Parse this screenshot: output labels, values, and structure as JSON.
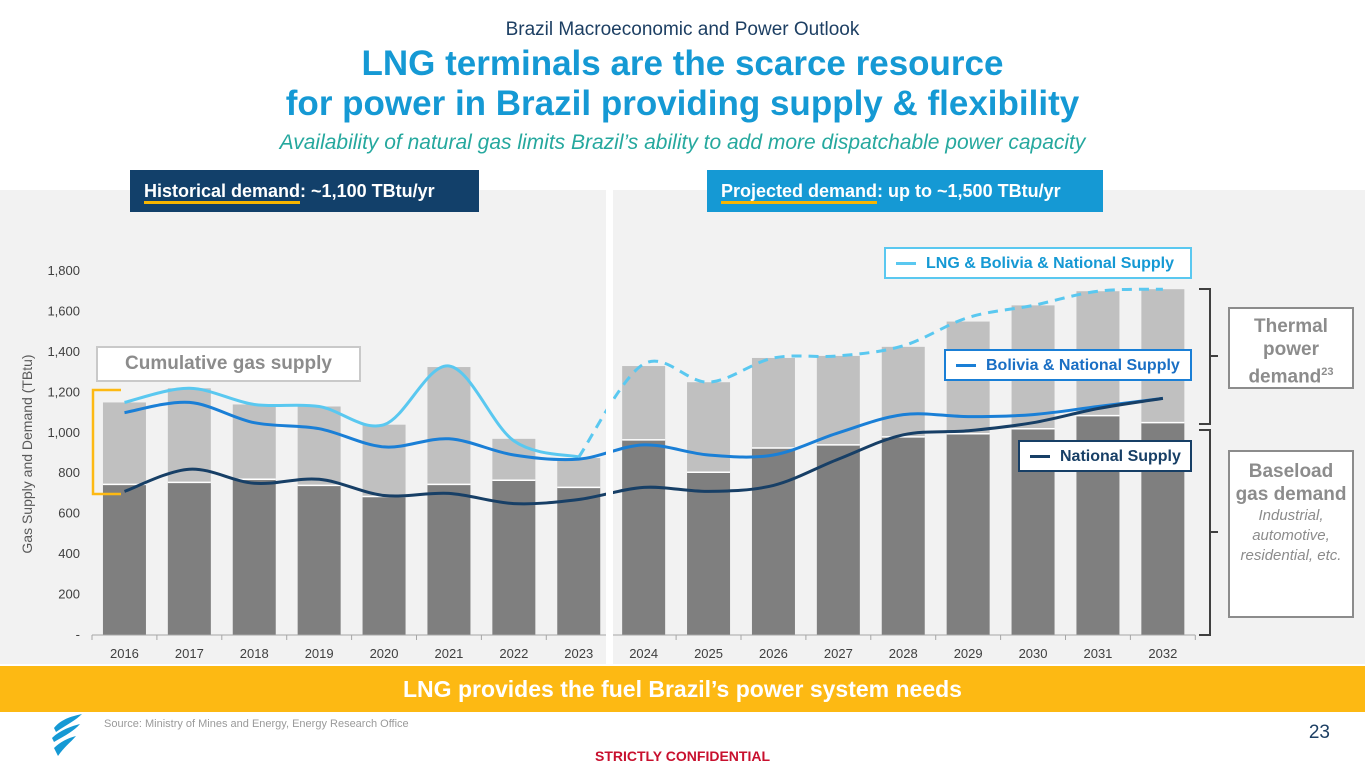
{
  "header": {
    "kicker": "Brazil Macroeconomic and Power Outlook",
    "title_line1": "LNG terminals are the scarce resource",
    "title_line2": "for power in Brazil providing supply & flexibility",
    "subtitle": "Availability of natural gas limits Brazil’s ability to add more dispatchable power capacity"
  },
  "tags": {
    "historical_label": "Historical demand",
    "historical_value": ": ~1,100 TBtu/yr",
    "projected_label": "Projected demand",
    "projected_value": ": up to ~1,500 TBtu/yr"
  },
  "legend": {
    "lng": "LNG & Bolivia & National Supply",
    "bolivia": "Bolivia & National Supply",
    "national": "National Supply",
    "cumulative": "Cumulative gas supply"
  },
  "side": {
    "thermal_title": "Thermal power demand",
    "thermal_sup": "23",
    "baseload_title": "Baseload gas demand",
    "baseload_desc": "Industrial, automotive, residential, etc."
  },
  "banner": "LNG provides the fuel Brazil’s power system needs",
  "source": "Source:  Ministry of Mines and Energy, Energy Research Office",
  "page_number": "23",
  "confidential": "STRICTLY CONFIDENTIAL",
  "colors": {
    "navy": "#12406a",
    "blue": "#1599d4",
    "light_blue": "#5ac8f0",
    "mid_blue": "#1a7fd6",
    "dark_line": "#173f66",
    "bar_dark": "#7f7f7f",
    "bar_light": "#c0c0c0",
    "yellow": "#fdb913"
  },
  "chart_data": {
    "type": "bar",
    "ylabel": "Gas Supply and Demand (TBtu)",
    "ylim": [
      0,
      1800
    ],
    "yticks": [
      0,
      200,
      400,
      600,
      800,
      1000,
      1200,
      1400,
      1600,
      1800
    ],
    "ytick_labels": [
      "-",
      "200",
      "400",
      "600",
      "800",
      "1,000",
      "1,200",
      "1,400",
      "1,600",
      "1,800"
    ],
    "categories": [
      "2016",
      "2017",
      "2018",
      "2019",
      "2020",
      "2021",
      "2022",
      "2023",
      "2024",
      "2025",
      "2026",
      "2027",
      "2028",
      "2029",
      "2030",
      "2031",
      "2032"
    ],
    "series": [
      {
        "name": "Baseload gas demand",
        "kind": "bar",
        "values": [
          745,
          755,
          770,
          740,
          685,
          745,
          765,
          730,
          965,
          805,
          925,
          940,
          980,
          995,
          1020,
          1085,
          1050
        ]
      },
      {
        "name": "Thermal power demand",
        "kind": "bar",
        "values": [
          405,
          465,
          370,
          390,
          355,
          580,
          205,
          145,
          365,
          445,
          445,
          440,
          445,
          555,
          610,
          615,
          660
        ]
      },
      {
        "name": "LNG & Bolivia & National Supply",
        "kind": "line",
        "values": [
          1150,
          1220,
          1140,
          1130,
          1040,
          1330,
          960,
          880,
          1340,
          1250,
          1370,
          1380,
          1430,
          1570,
          1630,
          1700,
          1710
        ]
      },
      {
        "name": "Bolivia & National Supply",
        "kind": "line",
        "values": [
          1100,
          1150,
          1050,
          1020,
          930,
          970,
          890,
          870,
          940,
          890,
          890,
          1000,
          1090,
          1080,
          1090,
          1130,
          1170
        ]
      },
      {
        "name": "National Supply",
        "kind": "line",
        "values": [
          710,
          820,
          750,
          770,
          690,
          700,
          650,
          670,
          730,
          710,
          740,
          870,
          990,
          1010,
          1050,
          1120,
          1170
        ]
      }
    ],
    "dashed_from_index": 7
  }
}
